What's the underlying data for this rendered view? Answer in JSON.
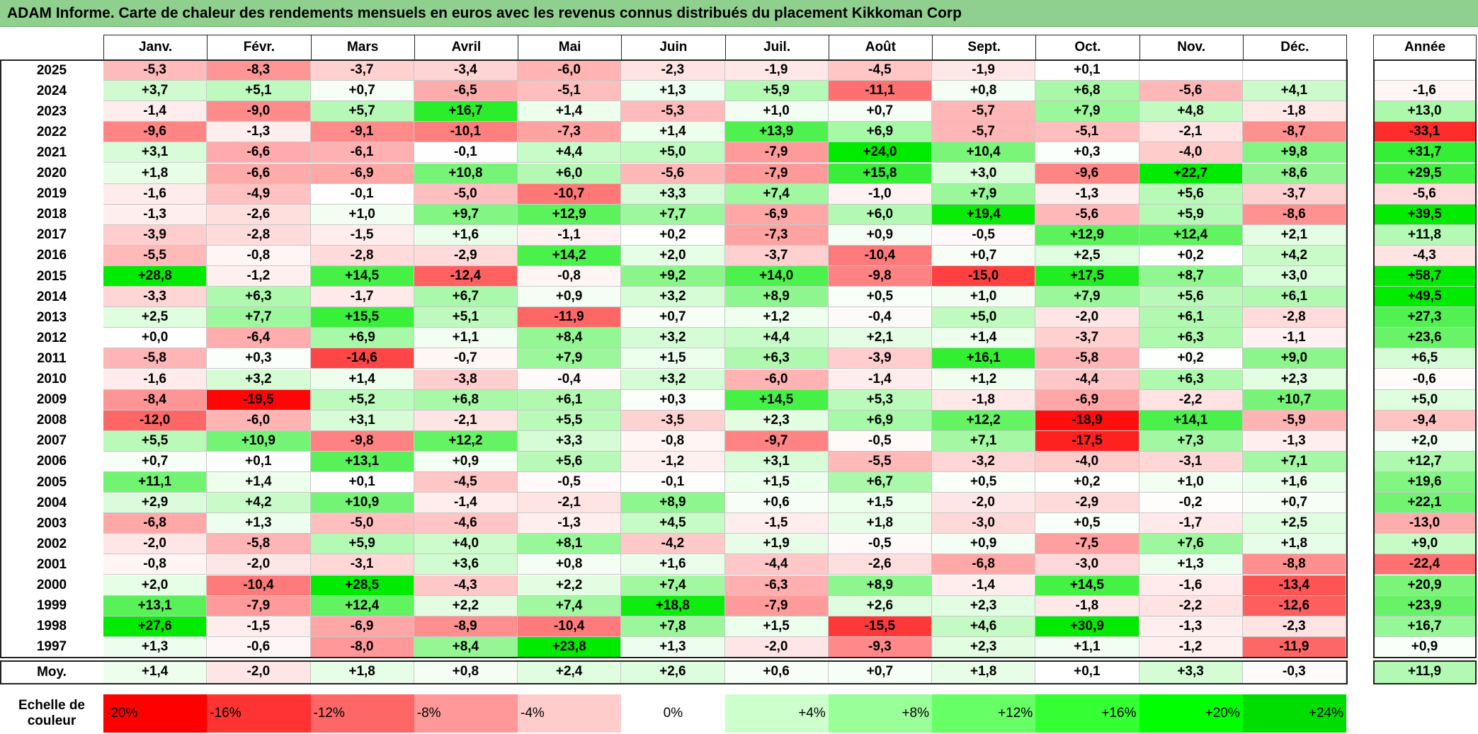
{
  "title": "ADAM Informe. Carte de chaleur des rendements mensuels en euros avec les revenus connus distribués du placement Kikkoman Corp",
  "chart_data": {
    "type": "heatmap",
    "title": "ADAM Informe. Carte de chaleur des rendements mensuels en euros avec les revenus connus distribués du placement Kikkoman Corp",
    "columns": [
      "Janv.",
      "Févr.",
      "Mars",
      "Avril",
      "Mai",
      "Juin",
      "Juil.",
      "Août",
      "Sept.",
      "Oct.",
      "Nov.",
      "Déc."
    ],
    "year_column_label": "Année",
    "rows": [
      {
        "year": "2025",
        "values": [
          "-5,3",
          "-8,3",
          "-3,7",
          "-3,4",
          "-6,0",
          "-2,3",
          "-1,9",
          "-4,5",
          "-1,9",
          "+0,1",
          "",
          ""
        ],
        "annual": ""
      },
      {
        "year": "2024",
        "values": [
          "+3,7",
          "+5,1",
          "+0,7",
          "-6,5",
          "-5,1",
          "+1,3",
          "+5,9",
          "-11,1",
          "+0,8",
          "+6,8",
          "-5,6",
          "+4,1"
        ],
        "annual": "-1,6"
      },
      {
        "year": "2023",
        "values": [
          "-1,4",
          "-9,0",
          "+5,7",
          "+16,7",
          "+1,4",
          "-5,3",
          "+1,0",
          "+0,7",
          "-5,7",
          "+7,9",
          "+4,8",
          "-1,8"
        ],
        "annual": "+13,0"
      },
      {
        "year": "2022",
        "values": [
          "-9,6",
          "-1,3",
          "-9,1",
          "-10,1",
          "-7,3",
          "+1,4",
          "+13,9",
          "+6,9",
          "-5,7",
          "-5,1",
          "-2,1",
          "-8,7"
        ],
        "annual": "-33,1"
      },
      {
        "year": "2021",
        "values": [
          "+3,1",
          "-6,6",
          "-6,1",
          "-0,1",
          "+4,4",
          "+5,0",
          "-7,9",
          "+24,0",
          "+10,4",
          "+0,3",
          "-4,0",
          "+9,8"
        ],
        "annual": "+31,7"
      },
      {
        "year": "2020",
        "values": [
          "+1,8",
          "-6,6",
          "-6,9",
          "+10,8",
          "+6,0",
          "-5,6",
          "-7,9",
          "+15,8",
          "+3,0",
          "-9,6",
          "+22,7",
          "+8,6"
        ],
        "annual": "+29,5"
      },
      {
        "year": "2019",
        "values": [
          "-1,6",
          "-4,9",
          "-0,1",
          "-5,0",
          "-10,7",
          "+3,3",
          "+7,4",
          "-1,0",
          "+7,9",
          "-1,3",
          "+5,6",
          "-3,7"
        ],
        "annual": "-5,6"
      },
      {
        "year": "2018",
        "values": [
          "-1,3",
          "-2,6",
          "+1,0",
          "+9,7",
          "+12,9",
          "+7,7",
          "-6,9",
          "+6,0",
          "+19,4",
          "-5,6",
          "+5,9",
          "-8,6"
        ],
        "annual": "+39,5"
      },
      {
        "year": "2017",
        "values": [
          "-3,9",
          "-2,8",
          "-1,5",
          "+1,6",
          "-1,1",
          "+0,2",
          "-7,3",
          "+0,9",
          "-0,5",
          "+12,9",
          "+12,4",
          "+2,1"
        ],
        "annual": "+11,8"
      },
      {
        "year": "2016",
        "values": [
          "-5,5",
          "-0,8",
          "-2,8",
          "-2,9",
          "+14,2",
          "+2,0",
          "-3,7",
          "-10,4",
          "+0,7",
          "+2,5",
          "+0,2",
          "+4,2"
        ],
        "annual": "-4,3"
      },
      {
        "year": "2015",
        "values": [
          "+28,8",
          "-1,2",
          "+14,5",
          "-12,4",
          "-0,8",
          "+9,2",
          "+14,0",
          "-9,8",
          "-15,0",
          "+17,5",
          "+8,7",
          "+3,0"
        ],
        "annual": "+58,7"
      },
      {
        "year": "2014",
        "values": [
          "-3,3",
          "+6,3",
          "-1,7",
          "+6,7",
          "+0,9",
          "+3,2",
          "+8,9",
          "+0,5",
          "+1,0",
          "+7,9",
          "+5,6",
          "+6,1"
        ],
        "annual": "+49,5"
      },
      {
        "year": "2013",
        "values": [
          "+2,5",
          "+7,7",
          "+15,5",
          "+5,1",
          "-11,9",
          "+0,7",
          "+1,2",
          "-0,4",
          "+5,0",
          "-2,0",
          "+6,1",
          "-2,8"
        ],
        "annual": "+27,3"
      },
      {
        "year": "2012",
        "values": [
          "+0,0",
          "-6,4",
          "+6,9",
          "+1,1",
          "+8,4",
          "+3,2",
          "+4,4",
          "+2,1",
          "+1,4",
          "-3,7",
          "+6,3",
          "-1,1"
        ],
        "annual": "+23,6"
      },
      {
        "year": "2011",
        "values": [
          "-5,8",
          "+0,3",
          "-14,6",
          "-0,7",
          "+7,9",
          "+1,5",
          "+6,3",
          "-3,9",
          "+16,1",
          "-5,8",
          "+0,2",
          "+9,0"
        ],
        "annual": "+6,5"
      },
      {
        "year": "2010",
        "values": [
          "-1,6",
          "+3,2",
          "+1,4",
          "-3,8",
          "-0,4",
          "+3,2",
          "-6,0",
          "-1,4",
          "+1,2",
          "-4,4",
          "+6,3",
          "+2,3"
        ],
        "annual": "-0,6"
      },
      {
        "year": "2009",
        "values": [
          "-8,4",
          "-19,5",
          "+5,2",
          "+6,8",
          "+6,1",
          "+0,3",
          "+14,5",
          "+5,3",
          "-1,8",
          "-6,9",
          "-2,2",
          "+10,7"
        ],
        "annual": "+5,0"
      },
      {
        "year": "2008",
        "values": [
          "-12,0",
          "-6,0",
          "+3,1",
          "-2,1",
          "+5,5",
          "-3,5",
          "+2,3",
          "+6,9",
          "+12,2",
          "-18,9",
          "+14,1",
          "-5,9"
        ],
        "annual": "-9,4"
      },
      {
        "year": "2007",
        "values": [
          "+5,5",
          "+10,9",
          "-9,8",
          "+12,2",
          "+3,3",
          "-0,8",
          "-9,7",
          "-0,5",
          "+7,1",
          "-17,5",
          "+7,3",
          "-1,3"
        ],
        "annual": "+2,0"
      },
      {
        "year": "2006",
        "values": [
          "+0,7",
          "+0,1",
          "+13,1",
          "+0,9",
          "+5,6",
          "-1,2",
          "+3,1",
          "-5,5",
          "-3,2",
          "-4,0",
          "-3,1",
          "+7,1"
        ],
        "annual": "+12,7"
      },
      {
        "year": "2005",
        "values": [
          "+11,1",
          "+1,4",
          "+0,1",
          "-4,5",
          "-0,5",
          "-0,1",
          "+1,5",
          "+6,7",
          "+0,5",
          "+0,2",
          "+1,0",
          "+1,6"
        ],
        "annual": "+19,6"
      },
      {
        "year": "2004",
        "values": [
          "+2,9",
          "+4,2",
          "+10,9",
          "-1,4",
          "-2,1",
          "+8,9",
          "+0,6",
          "+1,5",
          "-2,0",
          "-2,9",
          "-0,2",
          "+0,7"
        ],
        "annual": "+22,1"
      },
      {
        "year": "2003",
        "values": [
          "-6,8",
          "+1,3",
          "-5,0",
          "-4,6",
          "-1,3",
          "+4,5",
          "-1,5",
          "+1,8",
          "-3,0",
          "+0,5",
          "-1,7",
          "+2,5"
        ],
        "annual": "-13,0"
      },
      {
        "year": "2002",
        "values": [
          "-2,0",
          "-5,8",
          "+5,9",
          "+4,0",
          "+8,1",
          "-4,2",
          "+1,9",
          "-0,5",
          "+0,9",
          "-7,5",
          "+7,6",
          "+1,8"
        ],
        "annual": "+9,0"
      },
      {
        "year": "2001",
        "values": [
          "-0,8",
          "-2,0",
          "-3,1",
          "+3,6",
          "+0,8",
          "+1,6",
          "-4,4",
          "-2,6",
          "-6,8",
          "-3,0",
          "+1,3",
          "-8,8"
        ],
        "annual": "-22,4"
      },
      {
        "year": "2000",
        "values": [
          "+2,0",
          "-10,4",
          "+28,5",
          "-4,3",
          "+2,2",
          "+7,4",
          "-6,3",
          "+8,9",
          "-1,4",
          "+14,5",
          "-1,6",
          "-13,4"
        ],
        "annual": "+20,9"
      },
      {
        "year": "1999",
        "values": [
          "+13,1",
          "-7,9",
          "+12,4",
          "+2,2",
          "+7,4",
          "+18,8",
          "-7,9",
          "+2,6",
          "+2,3",
          "-1,8",
          "-2,2",
          "-12,6"
        ],
        "annual": "+23,9"
      },
      {
        "year": "1998",
        "values": [
          "+27,6",
          "-1,5",
          "-6,9",
          "-8,9",
          "-10,4",
          "+7,8",
          "+1,5",
          "-15,5",
          "+4,6",
          "+30,9",
          "-1,3",
          "-2,3"
        ],
        "annual": "+16,7"
      },
      {
        "year": "1997",
        "values": [
          "+1,3",
          "-0,6",
          "-8,0",
          "+8,4",
          "+23,8",
          "+1,3",
          "-2,0",
          "-9,3",
          "+2,3",
          "+1,1",
          "-1,2",
          "-11,9"
        ],
        "annual": "+0,9"
      }
    ],
    "average": {
      "label": "Moy.",
      "values": [
        "+1,4",
        "-2,0",
        "+1,8",
        "+0,8",
        "+2,4",
        "+2,6",
        "+0,6",
        "+0,7",
        "+1,8",
        "+0,1",
        "+3,3",
        "-0,3"
      ],
      "annual": "+11,9"
    },
    "color_scale": {
      "label_line1": "Echelle de",
      "label_line2": "couleur",
      "stops": [
        {
          "label": "-20%",
          "value": -20,
          "color": "#ff0000"
        },
        {
          "label": "-16%",
          "value": -16,
          "color": "#ff3333"
        },
        {
          "label": "-12%",
          "value": -12,
          "color": "#ff6666"
        },
        {
          "label": "-8%",
          "value": -8,
          "color": "#ff9999"
        },
        {
          "label": "-4%",
          "value": -4,
          "color": "#ffcccc"
        },
        {
          "label": "0%",
          "value": 0,
          "color": "#ffffff"
        },
        {
          "label": "+4%",
          "value": 4,
          "color": "#ccffcc"
        },
        {
          "label": "+8%",
          "value": 8,
          "color": "#99ff99"
        },
        {
          "label": "+12%",
          "value": 12,
          "color": "#66ff66"
        },
        {
          "label": "+16%",
          "value": 16,
          "color": "#33ff33"
        },
        {
          "label": "+20%",
          "value": 20,
          "color": "#00ff00"
        },
        {
          "label": "+24%",
          "value": 24,
          "color": "#00dd00"
        }
      ]
    }
  }
}
